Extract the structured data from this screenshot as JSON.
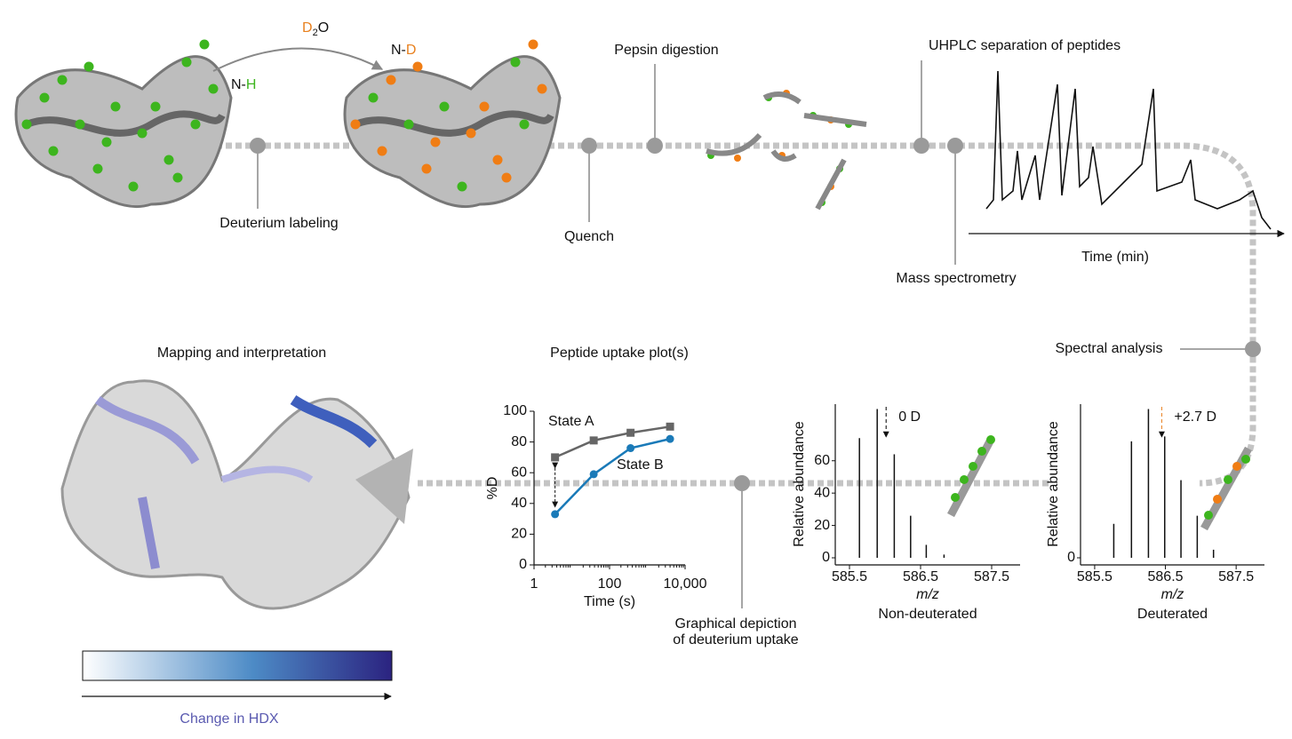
{
  "top": {
    "reagent": {
      "main": "D",
      "sub": "2",
      "tail": "O"
    },
    "before": {
      "prefix": "N-",
      "atom": "H"
    },
    "after": {
      "prefix": "N-",
      "atom": "D"
    },
    "steps": {
      "labeling": "Deuterium labeling",
      "quench": "Quench",
      "digestion": "Pepsin digestion",
      "separation": "UHPLC separation of peptides",
      "ms": "Mass spectrometry",
      "spectral": "Spectral analysis"
    },
    "chromatogram_axis": "Time (min)"
  },
  "mapping": {
    "title": "Mapping and interpretation",
    "colorbar_label": "Change in HDX"
  },
  "depiction": {
    "line1": "Graphical depiction",
    "line2": "of deuterium uptake"
  },
  "uptake_plot": {
    "type": "line",
    "title": "Peptide uptake plot(s)",
    "x_label": "Time (s)",
    "y_label": "%D",
    "log_x": true,
    "xlim": [
      1,
      10000
    ],
    "xticks": [
      1,
      100,
      {
        "value": 10000,
        "label": "10,000"
      }
    ],
    "ylim": [
      0,
      100
    ],
    "yticks": [
      0,
      20,
      40,
      60,
      80,
      100
    ],
    "x": [
      3.6,
      38,
      360,
      4000
    ],
    "series": [
      {
        "name": "State A",
        "color": "#666666",
        "marker": "square",
        "values": [
          70,
          81,
          86,
          90
        ]
      },
      {
        "name": "State B",
        "color": "#1a7ab8",
        "marker": "circle",
        "values": [
          33,
          59,
          76,
          82
        ]
      }
    ]
  },
  "spectra": [
    {
      "type": "bar",
      "title": "Non-deuterated",
      "x_label": "m/z",
      "y_label": "Relative abundance",
      "annotation": "0 D",
      "annotation_color": "#000000",
      "xlim": [
        585.3,
        587.9
      ],
      "xticks": [
        585.5,
        586.5,
        587.5
      ],
      "ylim": [
        0,
        95
      ],
      "yticks": [
        0,
        20,
        40,
        60
      ],
      "x": [
        585.64,
        585.89,
        586.13,
        586.36,
        586.58,
        586.83
      ],
      "values": [
        74,
        92,
        64,
        26,
        8,
        2
      ]
    },
    {
      "type": "bar",
      "title": "Deuterated",
      "x_label": "m/z",
      "y_label": "Relative abundance",
      "annotation": "+2.7 D",
      "annotation_color": "#e8801e",
      "xlim": [
        585.3,
        587.9
      ],
      "xticks": [
        585.5,
        586.5,
        587.5
      ],
      "ylim": [
        0,
        95
      ],
      "yticks": [
        0
      ],
      "x": [
        585.77,
        586.02,
        586.26,
        586.49,
        586.72,
        586.95,
        587.18
      ],
      "values": [
        21,
        72,
        92,
        75,
        48,
        26,
        5
      ]
    }
  ]
}
